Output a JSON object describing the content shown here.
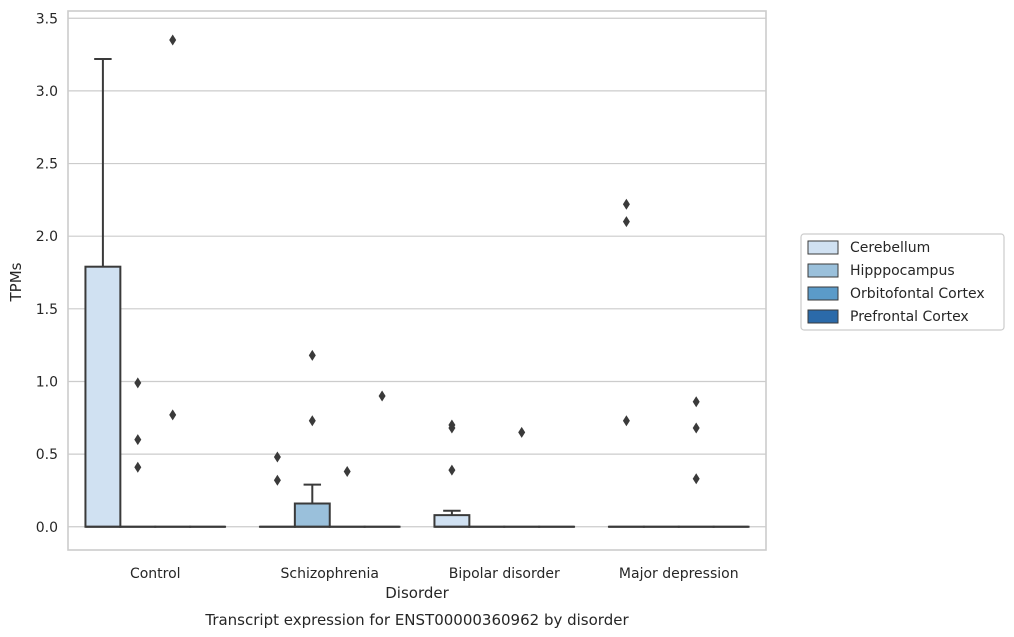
{
  "chart_data": {
    "type": "box",
    "caption": "Transcript expression for ENST00000360962 by disorder",
    "xlabel": "Disorder",
    "ylabel": "TPMs",
    "ylim": [
      -0.16,
      3.55
    ],
    "yticks": [
      0.0,
      0.5,
      1.0,
      1.5,
      2.0,
      2.5,
      3.0,
      3.5
    ],
    "ytick_labels": [
      "0.0",
      "0.5",
      "1.0",
      "1.5",
      "2.0",
      "2.5",
      "3.0",
      "3.5"
    ],
    "grid": true,
    "legend_position": "right",
    "categories": [
      "Control",
      "Schizophrenia",
      "Bipolar disorder",
      "Major depression"
    ],
    "series": [
      {
        "name": "Cerebellum",
        "color": "#d0e1f2",
        "boxes": [
          {
            "q1": 0.0,
            "median": 0.0,
            "q3": 1.79,
            "whisker_low": 0.0,
            "whisker_high": 3.22,
            "outliers": []
          },
          {
            "q1": 0.0,
            "median": 0.0,
            "q3": 0.0,
            "whisker_low": 0.0,
            "whisker_high": 0.0,
            "outliers": [
              0.48,
              0.32
            ]
          },
          {
            "q1": 0.0,
            "median": 0.0,
            "q3": 0.08,
            "whisker_low": 0.0,
            "whisker_high": 0.11,
            "outliers": [
              0.7,
              0.68,
              0.39
            ]
          },
          {
            "q1": 0.0,
            "median": 0.0,
            "q3": 0.0,
            "whisker_low": 0.0,
            "whisker_high": 0.0,
            "outliers": [
              2.22,
              2.1,
              0.73
            ]
          }
        ]
      },
      {
        "name": "Hipppocampus",
        "color": "#9ac0db",
        "boxes": [
          {
            "q1": 0.0,
            "median": 0.0,
            "q3": 0.0,
            "whisker_low": 0.0,
            "whisker_high": 0.0,
            "outliers": [
              0.99,
              0.6,
              0.41
            ]
          },
          {
            "q1": 0.0,
            "median": 0.0,
            "q3": 0.16,
            "whisker_low": 0.0,
            "whisker_high": 0.29,
            "outliers": [
              1.18,
              0.73
            ]
          },
          {
            "q1": 0.0,
            "median": 0.0,
            "q3": 0.0,
            "whisker_low": 0.0,
            "whisker_high": 0.0,
            "outliers": []
          },
          {
            "q1": 0.0,
            "median": 0.0,
            "q3": 0.0,
            "whisker_low": 0.0,
            "whisker_high": 0.0,
            "outliers": []
          }
        ]
      },
      {
        "name": "Orbitofontal Cortex",
        "color": "#5b9bc9",
        "boxes": [
          {
            "q1": 0.0,
            "median": 0.0,
            "q3": 0.0,
            "whisker_low": 0.0,
            "whisker_high": 0.0,
            "outliers": [
              3.35,
              0.77
            ]
          },
          {
            "q1": 0.0,
            "median": 0.0,
            "q3": 0.0,
            "whisker_low": 0.0,
            "whisker_high": 0.0,
            "outliers": [
              0.38
            ]
          },
          {
            "q1": 0.0,
            "median": 0.0,
            "q3": 0.0,
            "whisker_low": 0.0,
            "whisker_high": 0.0,
            "outliers": [
              0.65
            ]
          },
          {
            "q1": 0.0,
            "median": 0.0,
            "q3": 0.0,
            "whisker_low": 0.0,
            "whisker_high": 0.0,
            "outliers": [
              0.86,
              0.68,
              0.33
            ]
          }
        ]
      },
      {
        "name": "Prefrontal Cortex",
        "color": "#2b6aa9",
        "boxes": [
          {
            "q1": 0.0,
            "median": 0.0,
            "q3": 0.0,
            "whisker_low": 0.0,
            "whisker_high": 0.0,
            "outliers": []
          },
          {
            "q1": 0.0,
            "median": 0.0,
            "q3": 0.0,
            "whisker_low": 0.0,
            "whisker_high": 0.0,
            "outliers": [
              0.9
            ]
          },
          {
            "q1": 0.0,
            "median": 0.0,
            "q3": 0.0,
            "whisker_low": 0.0,
            "whisker_high": 0.0,
            "outliers": []
          },
          {
            "q1": 0.0,
            "median": 0.0,
            "q3": 0.0,
            "whisker_low": 0.0,
            "whisker_high": 0.0,
            "outliers": []
          }
        ]
      }
    ]
  }
}
